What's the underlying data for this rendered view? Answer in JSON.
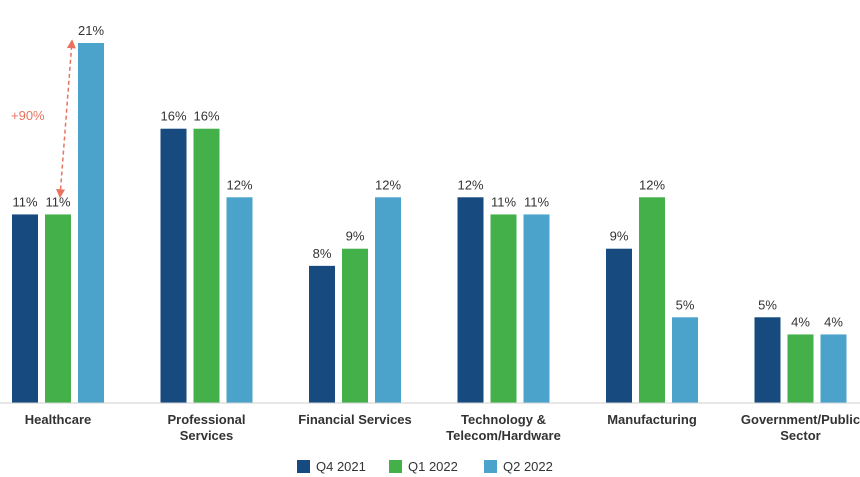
{
  "chart_data": {
    "type": "bar",
    "categories": [
      [
        "Healthcare"
      ],
      [
        "Professional",
        "Services"
      ],
      [
        "Financial Services"
      ],
      [
        "Technology &",
        "Telecom/Hardware"
      ],
      [
        "Manufacturing"
      ],
      [
        "Government/Public",
        "Sector"
      ]
    ],
    "series": [
      {
        "name": "Q4 2021",
        "color": "#174a7e",
        "values": [
          11,
          16,
          8,
          12,
          9,
          5
        ],
        "labels": [
          "11%",
          "16%",
          "8%",
          "12%",
          "9%",
          "5%"
        ]
      },
      {
        "name": "Q1 2022",
        "color": "#44b04a",
        "values": [
          11,
          16,
          9,
          11,
          12,
          4
        ],
        "labels": [
          "11%",
          "16%",
          "9%",
          "11%",
          "12%",
          "4%"
        ]
      },
      {
        "name": "Q2 2022",
        "color": "#4ba3cb",
        "values": [
          21,
          12,
          12,
          11,
          5,
          4
        ],
        "labels": [
          "21%",
          "12%",
          "12%",
          "11%",
          "5%",
          "4%"
        ]
      }
    ],
    "annotation": {
      "text": "+90%",
      "color": "#e8735f",
      "category_index": 0,
      "from_series": 1,
      "to_series": 2
    },
    "ylim": [
      0,
      21
    ],
    "grid": false,
    "legend_position": "bottom-center"
  }
}
